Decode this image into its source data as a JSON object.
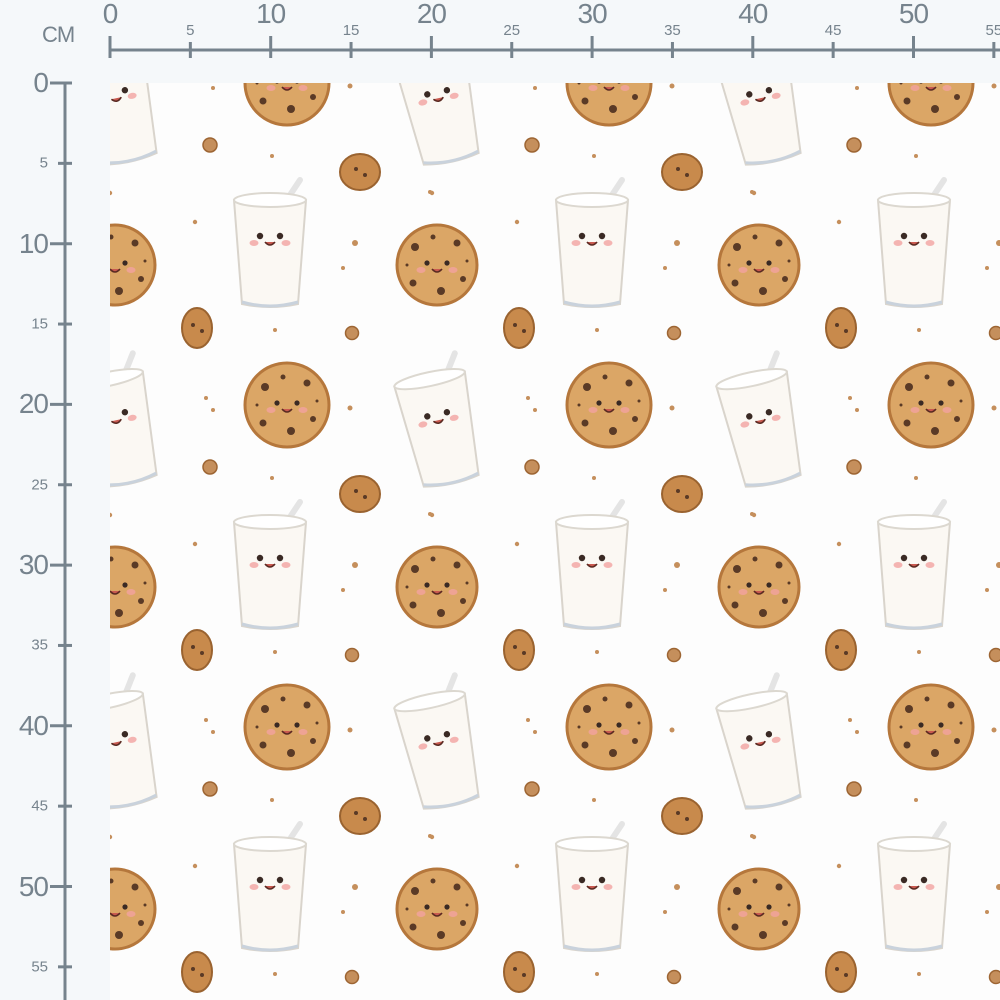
{
  "ruler": {
    "unit": "CM",
    "color": "#76838d",
    "top_labels": [
      "0",
      "5",
      "10",
      "15",
      "20",
      "25",
      "30",
      "35",
      "40",
      "45",
      "50",
      "55"
    ],
    "left_labels": [
      "0",
      "5",
      "10",
      "15",
      "20",
      "25",
      "30",
      "35",
      "40",
      "45",
      "50",
      "55"
    ]
  },
  "fabric": {
    "background": "#fdfdfd",
    "motifs": [
      "smiling-cookie",
      "smiling-milk-glass",
      "mini-cookie",
      "cookie-crumb"
    ],
    "colors": {
      "cookie": "#dba666",
      "cookie_edge": "#b5773c",
      "chip": "#5a3a26",
      "milk": "#fbf8f3",
      "blush": "#f2a3a0"
    }
  }
}
